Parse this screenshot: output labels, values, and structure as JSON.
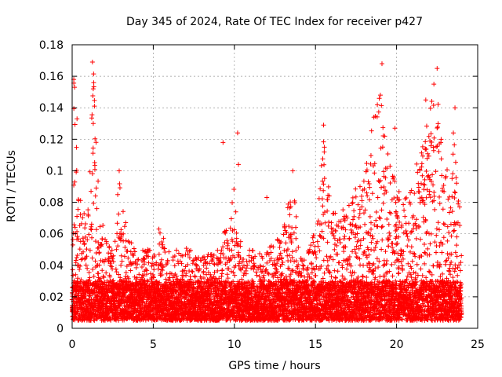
{
  "chart_data": {
    "type": "scatter",
    "title": "Day 345 of 2024, Rate Of TEC Index for receiver p427",
    "xlabel": "GPS time / hours",
    "ylabel": "ROTI / TECUs",
    "xlim": [
      0,
      25
    ],
    "ylim": [
      0,
      0.18
    ],
    "xticks": [
      0,
      5,
      10,
      15,
      20,
      25
    ],
    "yticks": [
      0,
      0.02,
      0.04,
      0.06,
      0.08,
      0.1,
      0.12,
      0.14,
      0.16,
      0.18
    ],
    "xtick_labels": [
      "0",
      "5",
      "10",
      "15",
      "20",
      "25"
    ],
    "ytick_labels": [
      "0",
      "0.02",
      "0.04",
      "0.06",
      "0.08",
      "0.1",
      "0.12",
      "0.14",
      "0.16",
      "0.18"
    ],
    "grid": true,
    "marker": "+",
    "color": "#ff0000",
    "data_range_hours": [
      0,
      24
    ],
    "baseline_band": [
      0.005,
      0.03
    ],
    "envelope": [
      [
        0.0,
        0.06
      ],
      [
        0.1,
        0.16
      ],
      [
        0.3,
        0.11
      ],
      [
        0.6,
        0.07
      ],
      [
        1.0,
        0.08
      ],
      [
        1.3,
        0.17
      ],
      [
        1.6,
        0.1
      ],
      [
        2.0,
        0.06
      ],
      [
        2.5,
        0.05
      ],
      [
        2.9,
        0.1
      ],
      [
        3.2,
        0.08
      ],
      [
        3.6,
        0.06
      ],
      [
        4.0,
        0.05
      ],
      [
        5.0,
        0.05
      ],
      [
        5.3,
        0.066
      ],
      [
        6.0,
        0.048
      ],
      [
        7.0,
        0.052
      ],
      [
        8.0,
        0.045
      ],
      [
        9.0,
        0.05
      ],
      [
        9.5,
        0.065
      ],
      [
        10.0,
        0.09
      ],
      [
        10.3,
        0.058
      ],
      [
        11.0,
        0.05
      ],
      [
        12.0,
        0.05
      ],
      [
        13.0,
        0.06
      ],
      [
        13.6,
        0.1
      ],
      [
        14.0,
        0.045
      ],
      [
        14.6,
        0.05
      ],
      [
        15.0,
        0.065
      ],
      [
        15.5,
        0.12
      ],
      [
        16.0,
        0.075
      ],
      [
        17.0,
        0.08
      ],
      [
        18.0,
        0.1
      ],
      [
        18.6,
        0.135
      ],
      [
        19.0,
        0.15
      ],
      [
        19.5,
        0.11
      ],
      [
        20.0,
        0.09
      ],
      [
        20.5,
        0.085
      ],
      [
        21.0,
        0.09
      ],
      [
        21.5,
        0.12
      ],
      [
        22.0,
        0.14
      ],
      [
        22.5,
        0.165
      ],
      [
        23.0,
        0.1
      ],
      [
        23.5,
        0.13
      ],
      [
        24.0,
        0.065
      ]
    ],
    "notable_points": [
      [
        0.1,
        0.158
      ],
      [
        0.15,
        0.153
      ],
      [
        0.3,
        0.133
      ],
      [
        1.25,
        0.169
      ],
      [
        1.3,
        0.152
      ],
      [
        1.3,
        0.13
      ],
      [
        2.9,
        0.1
      ],
      [
        9.3,
        0.118
      ],
      [
        10.2,
        0.124
      ],
      [
        10.25,
        0.104
      ],
      [
        12.0,
        0.083
      ],
      [
        13.6,
        0.1
      ],
      [
        15.5,
        0.129
      ],
      [
        15.55,
        0.115
      ],
      [
        18.6,
        0.134
      ],
      [
        19.1,
        0.168
      ],
      [
        19.0,
        0.148
      ],
      [
        19.9,
        0.127
      ],
      [
        21.8,
        0.145
      ],
      [
        22.5,
        0.165
      ],
      [
        22.3,
        0.155
      ],
      [
        23.6,
        0.14
      ],
      [
        23.5,
        0.124
      ]
    ]
  }
}
